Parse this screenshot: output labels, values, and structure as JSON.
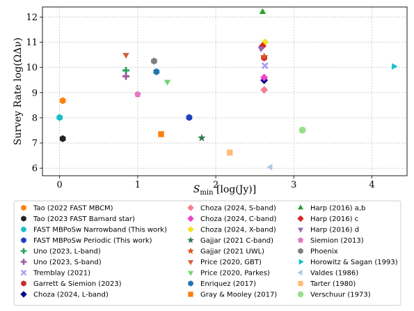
{
  "chart_data": {
    "type": "scatter",
    "xlabel_main": "S",
    "xlabel_sub": "min",
    "xlabel_rest": " [log(Jy)]",
    "ylabel": "Survey Rate log(ΩΔν)",
    "xlim": [
      -0.22,
      4.45
    ],
    "ylim": [
      5.7,
      12.4
    ],
    "xticks": [
      0,
      1,
      2,
      3,
      4
    ],
    "yticks": [
      6,
      7,
      8,
      9,
      10,
      11,
      12
    ],
    "grid": true,
    "legend_placement": "bottom",
    "series": [
      {
        "name": "Tao (2022 FAST MBCM)",
        "color": "#ff7f0e",
        "marker": "hexagon",
        "points": [
          [
            0.04,
            8.68
          ]
        ]
      },
      {
        "name": "Tao (2023 FAST Barnard star)",
        "color": "#222222",
        "marker": "hexagon",
        "points": [
          [
            0.04,
            7.17
          ]
        ]
      },
      {
        "name": "FAST MBPoSw Narrowband (This work)",
        "color": "#17becf",
        "marker": "hexagon",
        "points": [
          [
            0.0,
            8.01
          ]
        ]
      },
      {
        "name": "FAST MBPoSw Periodic (This work)",
        "color": "#1f3fbf",
        "marker": "hexagon",
        "points": [
          [
            1.66,
            8.01
          ]
        ]
      },
      {
        "name": "Uno (2023, L-band)",
        "color": "#2ca05a",
        "marker": "plus",
        "points": [
          [
            0.85,
            9.88
          ]
        ]
      },
      {
        "name": "Uno (2023, S-band)",
        "color": "#a05aa0",
        "marker": "plus",
        "points": [
          [
            0.85,
            9.65
          ]
        ]
      },
      {
        "name": "Tremblay (2021)",
        "color": "#a7a1f0",
        "marker": "x",
        "points": [
          [
            2.63,
            10.07
          ]
        ]
      },
      {
        "name": "Garrett & Siemion (2023)",
        "color": "#c62d2d",
        "marker": "hexagon",
        "points": [
          [
            2.62,
            10.38
          ]
        ]
      },
      {
        "name": "Choza (2024, L-band)",
        "color": "#00008b",
        "marker": "diamond",
        "points": [
          [
            2.62,
            9.49
          ]
        ]
      },
      {
        "name": "Choza (2024, S-band)",
        "color": "#f67f8f",
        "marker": "diamond",
        "points": [
          [
            2.62,
            9.11
          ]
        ]
      },
      {
        "name": "Choza (2024, C-band)",
        "color": "#ee44cc",
        "marker": "diamond",
        "points": [
          [
            2.62,
            9.6
          ]
        ]
      },
      {
        "name": "Choza (2024, X-band)",
        "color": "#f5e02a",
        "marker": "diamond",
        "points": [
          [
            2.63,
            11.0
          ]
        ]
      },
      {
        "name": "Gajjar (2021 C-band)",
        "color": "#2e7d52",
        "marker": "star",
        "points": [
          [
            1.82,
            7.2
          ]
        ]
      },
      {
        "name": "Gajjar (2021 UWL)",
        "color": "#d9541a",
        "marker": "star",
        "points": [
          [
            2.62,
            10.43
          ]
        ]
      },
      {
        "name": "Price (2020, GBT)",
        "color": "#d2613c",
        "marker": "tri_down",
        "points": [
          [
            0.85,
            10.5
          ]
        ]
      },
      {
        "name": "Price (2020, Parkes)",
        "color": "#6fd66f",
        "marker": "tri_down",
        "points": [
          [
            1.38,
            9.43
          ]
        ]
      },
      {
        "name": "Enriquez (2017)",
        "color": "#1f77b4",
        "marker": "hexagon",
        "points": [
          [
            1.24,
            9.83
          ]
        ]
      },
      {
        "name": "Gray & Mooley (2017)",
        "color": "#ff7f0e",
        "marker": "square",
        "points": [
          [
            1.3,
            7.35
          ]
        ]
      },
      {
        "name": "Harp (2016) a,b",
        "color": "#2ca02c",
        "marker": "tri_up",
        "points": [
          [
            2.6,
            12.2
          ]
        ]
      },
      {
        "name": "Harp (2016) c",
        "color": "#d62728",
        "marker": "diamond",
        "points": [
          [
            2.6,
            10.85
          ]
        ]
      },
      {
        "name": "Harp (2016) d",
        "color": "#9467bd",
        "marker": "tri_down",
        "points": [
          [
            2.58,
            10.75
          ]
        ]
      },
      {
        "name": "Siemion (2013)",
        "color": "#e377c2",
        "marker": "pentagon",
        "points": [
          [
            1.0,
            8.93
          ]
        ]
      },
      {
        "name": "Phoenix",
        "color": "#7f7f7f",
        "marker": "hexagon",
        "points": [
          [
            1.21,
            10.25
          ]
        ]
      },
      {
        "name": "Horowitz & Sagan (1993)",
        "color": "#17becf",
        "marker": "tri_right",
        "points": [
          [
            4.28,
            10.04
          ]
        ]
      },
      {
        "name": "Valdes (1986)",
        "color": "#aec7e8",
        "marker": "tri_left",
        "points": [
          [
            2.7,
            6.04
          ]
        ]
      },
      {
        "name": "Tarter (1980)",
        "color": "#ffbb78",
        "marker": "square",
        "points": [
          [
            2.18,
            6.62
          ]
        ]
      },
      {
        "name": "Verschuur (1973)",
        "color": "#98df8a",
        "marker": "circle",
        "points": [
          [
            3.11,
            7.51
          ]
        ]
      }
    ]
  }
}
